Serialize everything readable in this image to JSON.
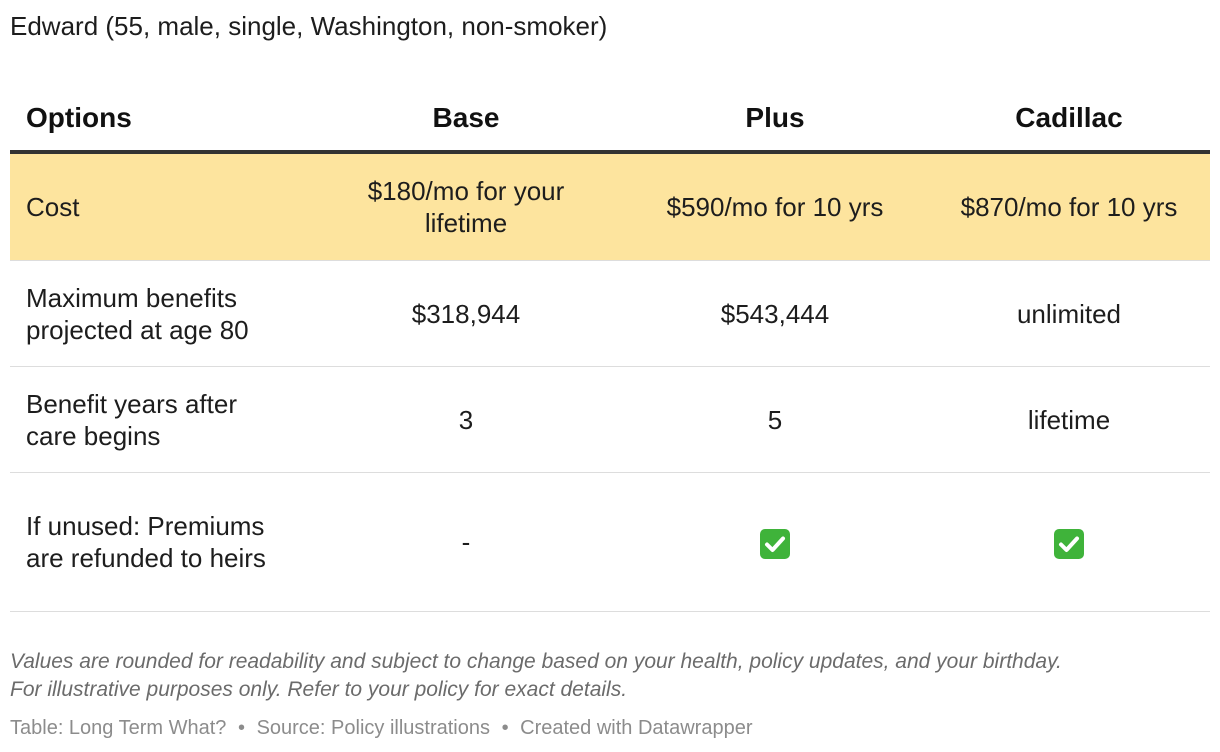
{
  "subtitle": "Edward (55, male, single, Washington, non-smoker)",
  "chart_data": {
    "type": "table",
    "columns": [
      "Options",
      "Base",
      "Plus",
      "Cadillac"
    ],
    "rows": [
      {
        "label": "Cost",
        "values": [
          "$180/mo for your lifetime",
          "$590/mo for 10 yrs",
          "$870/mo for 10 yrs"
        ]
      },
      {
        "label": "Maximum benefits projected at age 80",
        "values": [
          "$318,944",
          "$543,444",
          "unlimited"
        ]
      },
      {
        "label": "Benefit years after care begins",
        "values": [
          "3",
          "5",
          "lifetime"
        ]
      },
      {
        "label": "If unused: Premiums are refunded to heirs",
        "values": [
          "-",
          "✅",
          "✅"
        ]
      }
    ],
    "highlight_row_color": "#fde49e",
    "check_icon": "check-mark-button-icon"
  },
  "notes": {
    "line1": "Values are rounded for readability and subject to change based on your health, policy updates, and your birthday.",
    "line2": "For illustrative purposes only. Refer to your policy for exact details."
  },
  "footer": {
    "table": "Table: Long Term What?",
    "source": "Source: Policy illustrations",
    "created": "Created with Datawrapper",
    "separator": "•"
  }
}
